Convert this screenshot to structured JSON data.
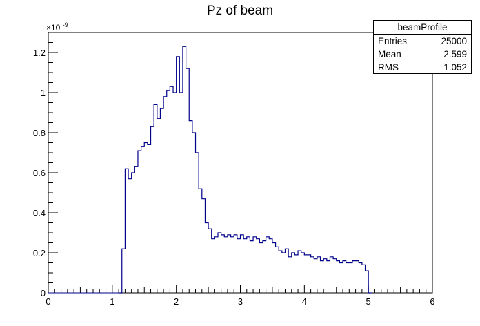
{
  "chart_data": {
    "type": "histogram",
    "title": "Pz of beam",
    "xlabel": "",
    "ylabel": "",
    "xlim": [
      0,
      6
    ],
    "ylim": [
      0,
      1.3
    ],
    "y_exponent_label": "×10",
    "y_exponent_power": "-9",
    "bin_width": 0.05,
    "bin_start": 1.1,
    "x_ticks": [
      "0",
      "1",
      "2",
      "3",
      "4",
      "5",
      "6"
    ],
    "y_ticks": [
      "0",
      "0.2",
      "0.4",
      "0.6",
      "0.8",
      "1",
      "1.2"
    ],
    "values": [
      0.0,
      0.22,
      0.62,
      0.57,
      0.6,
      0.63,
      0.71,
      0.73,
      0.75,
      0.74,
      0.83,
      0.94,
      0.87,
      0.92,
      0.98,
      1.01,
      1.03,
      1.0,
      1.18,
      1.0,
      1.23,
      1.12,
      0.86,
      0.8,
      0.7,
      0.52,
      0.47,
      0.35,
      0.32,
      0.27,
      0.28,
      0.3,
      0.29,
      0.28,
      0.29,
      0.28,
      0.29,
      0.27,
      0.29,
      0.27,
      0.28,
      0.26,
      0.28,
      0.27,
      0.25,
      0.26,
      0.28,
      0.27,
      0.25,
      0.23,
      0.21,
      0.2,
      0.22,
      0.18,
      0.2,
      0.19,
      0.21,
      0.2,
      0.19,
      0.19,
      0.18,
      0.17,
      0.18,
      0.16,
      0.17,
      0.16,
      0.18,
      0.17,
      0.16,
      0.15,
      0.16,
      0.15,
      0.15,
      0.16,
      0.16,
      0.15,
      0.14,
      0.11,
      0.0
    ],
    "line_color": "#00008b",
    "stats": {
      "name": "beamProfile",
      "rows": [
        {
          "label": "Entries",
          "value": "25000"
        },
        {
          "label": "Mean",
          "value": "2.599"
        },
        {
          "label": "RMS",
          "value": "1.052"
        }
      ]
    }
  }
}
